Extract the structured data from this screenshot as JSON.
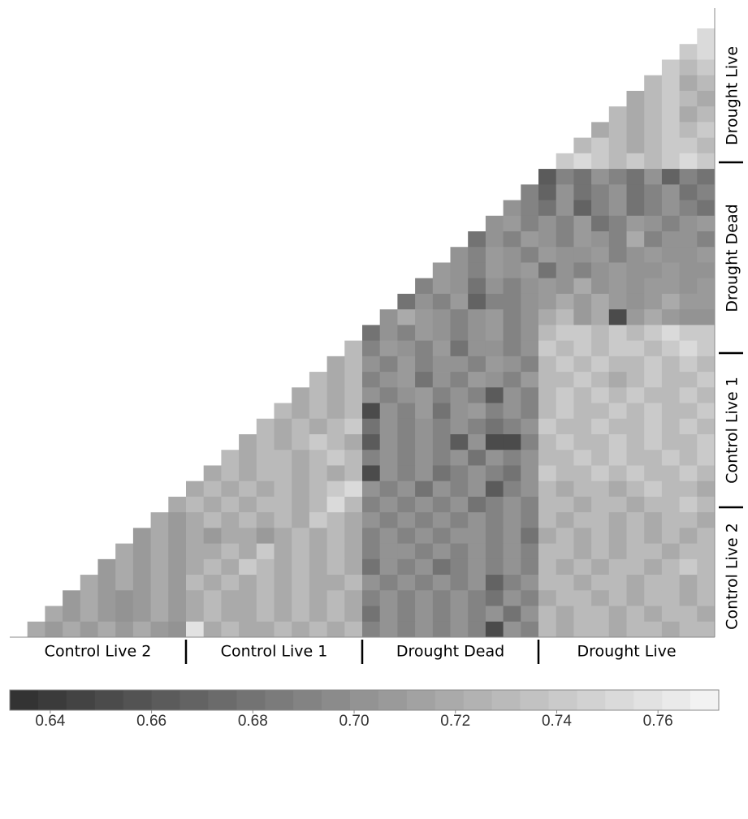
{
  "chart_data": {
    "type": "triangular-heatmap",
    "groups": [
      "Control Live 2",
      "Control Live 1",
      "Drought Dead",
      "Drought Live"
    ],
    "rows": [
      [
        0.75
      ],
      [
        0.74,
        0.75
      ],
      [
        0.74,
        0.73,
        0.74
      ],
      [
        0.73,
        0.74,
        0.72,
        0.73
      ],
      [
        0.72,
        0.73,
        0.74,
        0.73,
        0.72
      ],
      [
        0.73,
        0.72,
        0.73,
        0.74,
        0.72,
        0.73
      ],
      [
        0.72,
        0.73,
        0.72,
        0.73,
        0.74,
        0.73,
        0.74
      ],
      [
        0.73,
        0.74,
        0.73,
        0.72,
        0.73,
        0.74,
        0.74,
        0.73
      ],
      [
        0.74,
        0.75,
        0.74,
        0.73,
        0.74,
        0.73,
        0.74,
        0.75,
        0.74
      ],
      [
        0.66,
        0.69,
        0.68,
        0.7,
        0.69,
        0.68,
        0.7,
        0.67,
        0.69,
        0.68
      ],
      [
        0.69,
        0.67,
        0.7,
        0.68,
        0.69,
        0.7,
        0.68,
        0.69,
        0.7,
        0.68,
        0.69
      ],
      [
        0.7,
        0.69,
        0.68,
        0.7,
        0.67,
        0.69,
        0.7,
        0.68,
        0.69,
        0.7,
        0.69,
        0.68
      ],
      [
        0.7,
        0.71,
        0.69,
        0.7,
        0.69,
        0.71,
        0.68,
        0.69,
        0.71,
        0.7,
        0.69,
        0.7,
        0.71
      ],
      [
        0.68,
        0.7,
        0.69,
        0.71,
        0.7,
        0.69,
        0.71,
        0.7,
        0.69,
        0.72,
        0.69,
        0.7,
        0.7,
        0.69
      ],
      [
        0.7,
        0.69,
        0.71,
        0.7,
        0.69,
        0.71,
        0.7,
        0.7,
        0.71,
        0.69,
        0.7,
        0.71,
        0.7,
        0.7,
        0.71
      ],
      [
        0.71,
        0.7,
        0.69,
        0.71,
        0.7,
        0.71,
        0.68,
        0.7,
        0.69,
        0.7,
        0.71,
        0.7,
        0.7,
        0.71,
        0.7,
        0.7
      ],
      [
        0.69,
        0.71,
        0.7,
        0.68,
        0.7,
        0.69,
        0.7,
        0.71,
        0.7,
        0.72,
        0.7,
        0.71,
        0.7,
        0.71,
        0.71,
        0.7,
        0.71
      ],
      [
        0.68,
        0.7,
        0.69,
        0.71,
        0.67,
        0.69,
        0.69,
        0.7,
        0.71,
        0.72,
        0.71,
        0.72,
        0.71,
        0.7,
        0.71,
        0.72,
        0.71,
        0.71
      ],
      [
        0.7,
        0.72,
        0.71,
        0.7,
        0.69,
        0.7,
        0.71,
        0.69,
        0.7,
        0.72,
        0.73,
        0.71,
        0.72,
        0.65,
        0.71,
        0.72,
        0.71,
        0.7,
        0.7
      ],
      [
        0.68,
        0.7,
        0.69,
        0.71,
        0.7,
        0.69,
        0.7,
        0.71,
        0.69,
        0.7,
        0.73,
        0.74,
        0.74,
        0.73,
        0.74,
        0.73,
        0.74,
        0.75,
        0.74,
        0.74
      ],
      [
        0.73,
        0.69,
        0.71,
        0.7,
        0.69,
        0.71,
        0.68,
        0.7,
        0.7,
        0.69,
        0.7,
        0.74,
        0.73,
        0.74,
        0.73,
        0.74,
        0.74,
        0.73,
        0.74,
        0.75,
        0.74
      ],
      [
        0.72,
        0.73,
        0.7,
        0.69,
        0.71,
        0.69,
        0.7,
        0.7,
        0.69,
        0.71,
        0.7,
        0.69,
        0.73,
        0.74,
        0.73,
        0.74,
        0.73,
        0.73,
        0.74,
        0.73,
        0.74,
        0.73
      ],
      [
        0.73,
        0.72,
        0.73,
        0.69,
        0.7,
        0.71,
        0.68,
        0.7,
        0.69,
        0.71,
        0.7,
        0.69,
        0.71,
        0.73,
        0.73,
        0.74,
        0.73,
        0.72,
        0.73,
        0.74,
        0.73,
        0.73,
        0.74
      ],
      [
        0.72,
        0.73,
        0.72,
        0.73,
        0.7,
        0.69,
        0.7,
        0.71,
        0.69,
        0.7,
        0.69,
        0.66,
        0.7,
        0.69,
        0.73,
        0.74,
        0.73,
        0.74,
        0.73,
        0.74,
        0.73,
        0.73,
        0.74,
        0.73
      ],
      [
        0.73,
        0.72,
        0.73,
        0.72,
        0.73,
        0.65,
        0.7,
        0.69,
        0.71,
        0.68,
        0.7,
        0.71,
        0.69,
        0.7,
        0.69,
        0.73,
        0.74,
        0.73,
        0.73,
        0.74,
        0.73,
        0.74,
        0.73,
        0.73,
        0.74
      ],
      [
        0.73,
        0.72,
        0.73,
        0.72,
        0.73,
        0.74,
        0.68,
        0.7,
        0.69,
        0.7,
        0.69,
        0.7,
        0.69,
        0.68,
        0.69,
        0.7,
        0.74,
        0.73,
        0.73,
        0.74,
        0.73,
        0.73,
        0.74,
        0.73,
        0.74,
        0.73
      ],
      [
        0.72,
        0.73,
        0.72,
        0.73,
        0.74,
        0.73,
        0.72,
        0.66,
        0.7,
        0.69,
        0.7,
        0.69,
        0.66,
        0.7,
        0.65,
        0.65,
        0.69,
        0.73,
        0.74,
        0.73,
        0.73,
        0.74,
        0.73,
        0.74,
        0.73,
        0.73,
        0.74
      ],
      [
        0.73,
        0.72,
        0.73,
        0.73,
        0.72,
        0.73,
        0.74,
        0.73,
        0.69,
        0.7,
        0.69,
        0.7,
        0.69,
        0.7,
        0.68,
        0.7,
        0.69,
        0.7,
        0.73,
        0.73,
        0.74,
        0.73,
        0.74,
        0.73,
        0.73,
        0.74,
        0.73,
        0.74
      ],
      [
        0.72,
        0.73,
        0.72,
        0.73,
        0.73,
        0.72,
        0.73,
        0.72,
        0.73,
        0.65,
        0.7,
        0.69,
        0.7,
        0.68,
        0.69,
        0.7,
        0.69,
        0.68,
        0.7,
        0.74,
        0.73,
        0.73,
        0.74,
        0.73,
        0.74,
        0.73,
        0.73,
        0.74,
        0.73
      ],
      [
        0.72,
        0.73,
        0.72,
        0.73,
        0.72,
        0.73,
        0.72,
        0.73,
        0.74,
        0.75,
        0.7,
        0.69,
        0.7,
        0.68,
        0.7,
        0.69,
        0.7,
        0.66,
        0.69,
        0.7,
        0.73,
        0.72,
        0.73,
        0.73,
        0.72,
        0.73,
        0.74,
        0.73,
        0.73,
        0.72
      ],
      [
        0.72,
        0.73,
        0.72,
        0.73,
        0.72,
        0.73,
        0.73,
        0.72,
        0.73,
        0.75,
        0.73,
        0.69,
        0.7,
        0.69,
        0.7,
        0.69,
        0.7,
        0.68,
        0.69,
        0.7,
        0.69,
        0.73,
        0.73,
        0.72,
        0.73,
        0.73,
        0.72,
        0.73,
        0.73,
        0.74,
        0.73
      ],
      [
        0.72,
        0.71,
        0.72,
        0.73,
        0.72,
        0.73,
        0.72,
        0.73,
        0.72,
        0.74,
        0.73,
        0.72,
        0.7,
        0.69,
        0.7,
        0.69,
        0.7,
        0.69,
        0.7,
        0.69,
        0.7,
        0.69,
        0.73,
        0.72,
        0.73,
        0.73,
        0.72,
        0.73,
        0.72,
        0.73,
        0.73,
        0.72
      ],
      [
        0.71,
        0.72,
        0.71,
        0.72,
        0.71,
        0.72,
        0.72,
        0.71,
        0.72,
        0.73,
        0.72,
        0.73,
        0.72,
        0.69,
        0.7,
        0.69,
        0.7,
        0.69,
        0.7,
        0.7,
        0.69,
        0.7,
        0.68,
        0.72,
        0.73,
        0.72,
        0.73,
        0.72,
        0.73,
        0.72,
        0.73,
        0.72,
        0.73
      ],
      [
        0.72,
        0.71,
        0.72,
        0.71,
        0.72,
        0.72,
        0.73,
        0.72,
        0.74,
        0.72,
        0.73,
        0.72,
        0.73,
        0.72,
        0.69,
        0.7,
        0.7,
        0.69,
        0.7,
        0.69,
        0.7,
        0.69,
        0.7,
        0.69,
        0.73,
        0.73,
        0.72,
        0.73,
        0.72,
        0.73,
        0.73,
        0.72,
        0.73,
        0.73
      ],
      [
        0.71,
        0.72,
        0.71,
        0.72,
        0.71,
        0.72,
        0.73,
        0.72,
        0.74,
        0.73,
        0.72,
        0.73,
        0.72,
        0.73,
        0.72,
        0.68,
        0.7,
        0.69,
        0.7,
        0.68,
        0.69,
        0.7,
        0.69,
        0.7,
        0.69,
        0.73,
        0.72,
        0.73,
        0.72,
        0.73,
        0.73,
        0.72,
        0.73,
        0.74,
        0.73
      ],
      [
        0.72,
        0.71,
        0.72,
        0.71,
        0.72,
        0.71,
        0.73,
        0.72,
        0.73,
        0.72,
        0.73,
        0.72,
        0.73,
        0.72,
        0.72,
        0.73,
        0.7,
        0.69,
        0.7,
        0.69,
        0.7,
        0.69,
        0.7,
        0.67,
        0.69,
        0.7,
        0.73,
        0.73,
        0.72,
        0.73,
        0.73,
        0.72,
        0.73,
        0.73,
        0.72,
        0.73
      ],
      [
        0.71,
        0.72,
        0.71,
        0.7,
        0.71,
        0.72,
        0.71,
        0.72,
        0.73,
        0.72,
        0.72,
        0.73,
        0.72,
        0.73,
        0.72,
        0.73,
        0.72,
        0.69,
        0.7,
        0.69,
        0.7,
        0.69,
        0.7,
        0.69,
        0.68,
        0.7,
        0.69,
        0.72,
        0.73,
        0.73,
        0.72,
        0.73,
        0.72,
        0.73,
        0.73,
        0.72,
        0.73
      ],
      [
        0.72,
        0.71,
        0.72,
        0.71,
        0.7,
        0.71,
        0.72,
        0.71,
        0.72,
        0.73,
        0.72,
        0.72,
        0.73,
        0.72,
        0.73,
        0.72,
        0.73,
        0.72,
        0.68,
        0.7,
        0.69,
        0.7,
        0.69,
        0.7,
        0.69,
        0.7,
        0.68,
        0.7,
        0.73,
        0.72,
        0.73,
        0.73,
        0.72,
        0.73,
        0.72,
        0.73,
        0.73,
        0.72
      ],
      [
        0.72,
        0.71,
        0.72,
        0.71,
        0.72,
        0.71,
        0.72,
        0.71,
        0.7,
        0.76,
        0.72,
        0.73,
        0.72,
        0.72,
        0.73,
        0.72,
        0.73,
        0.72,
        0.73,
        0.69,
        0.7,
        0.69,
        0.7,
        0.69,
        0.7,
        0.69,
        0.65,
        0.7,
        0.69,
        0.73,
        0.72,
        0.73,
        0.73,
        0.72,
        0.73,
        0.73,
        0.72,
        0.73,
        0.73
      ]
    ],
    "colorbar": {
      "lim": [
        0.632,
        0.772
      ],
      "steps": 25,
      "colors": [
        "#333333",
        "#f2f2f2"
      ],
      "ticks": [
        0.64,
        0.66,
        0.68,
        {
          "value": 0.7,
          "label": "0.70"
        },
        0.72,
        0.74,
        0.76
      ]
    }
  }
}
